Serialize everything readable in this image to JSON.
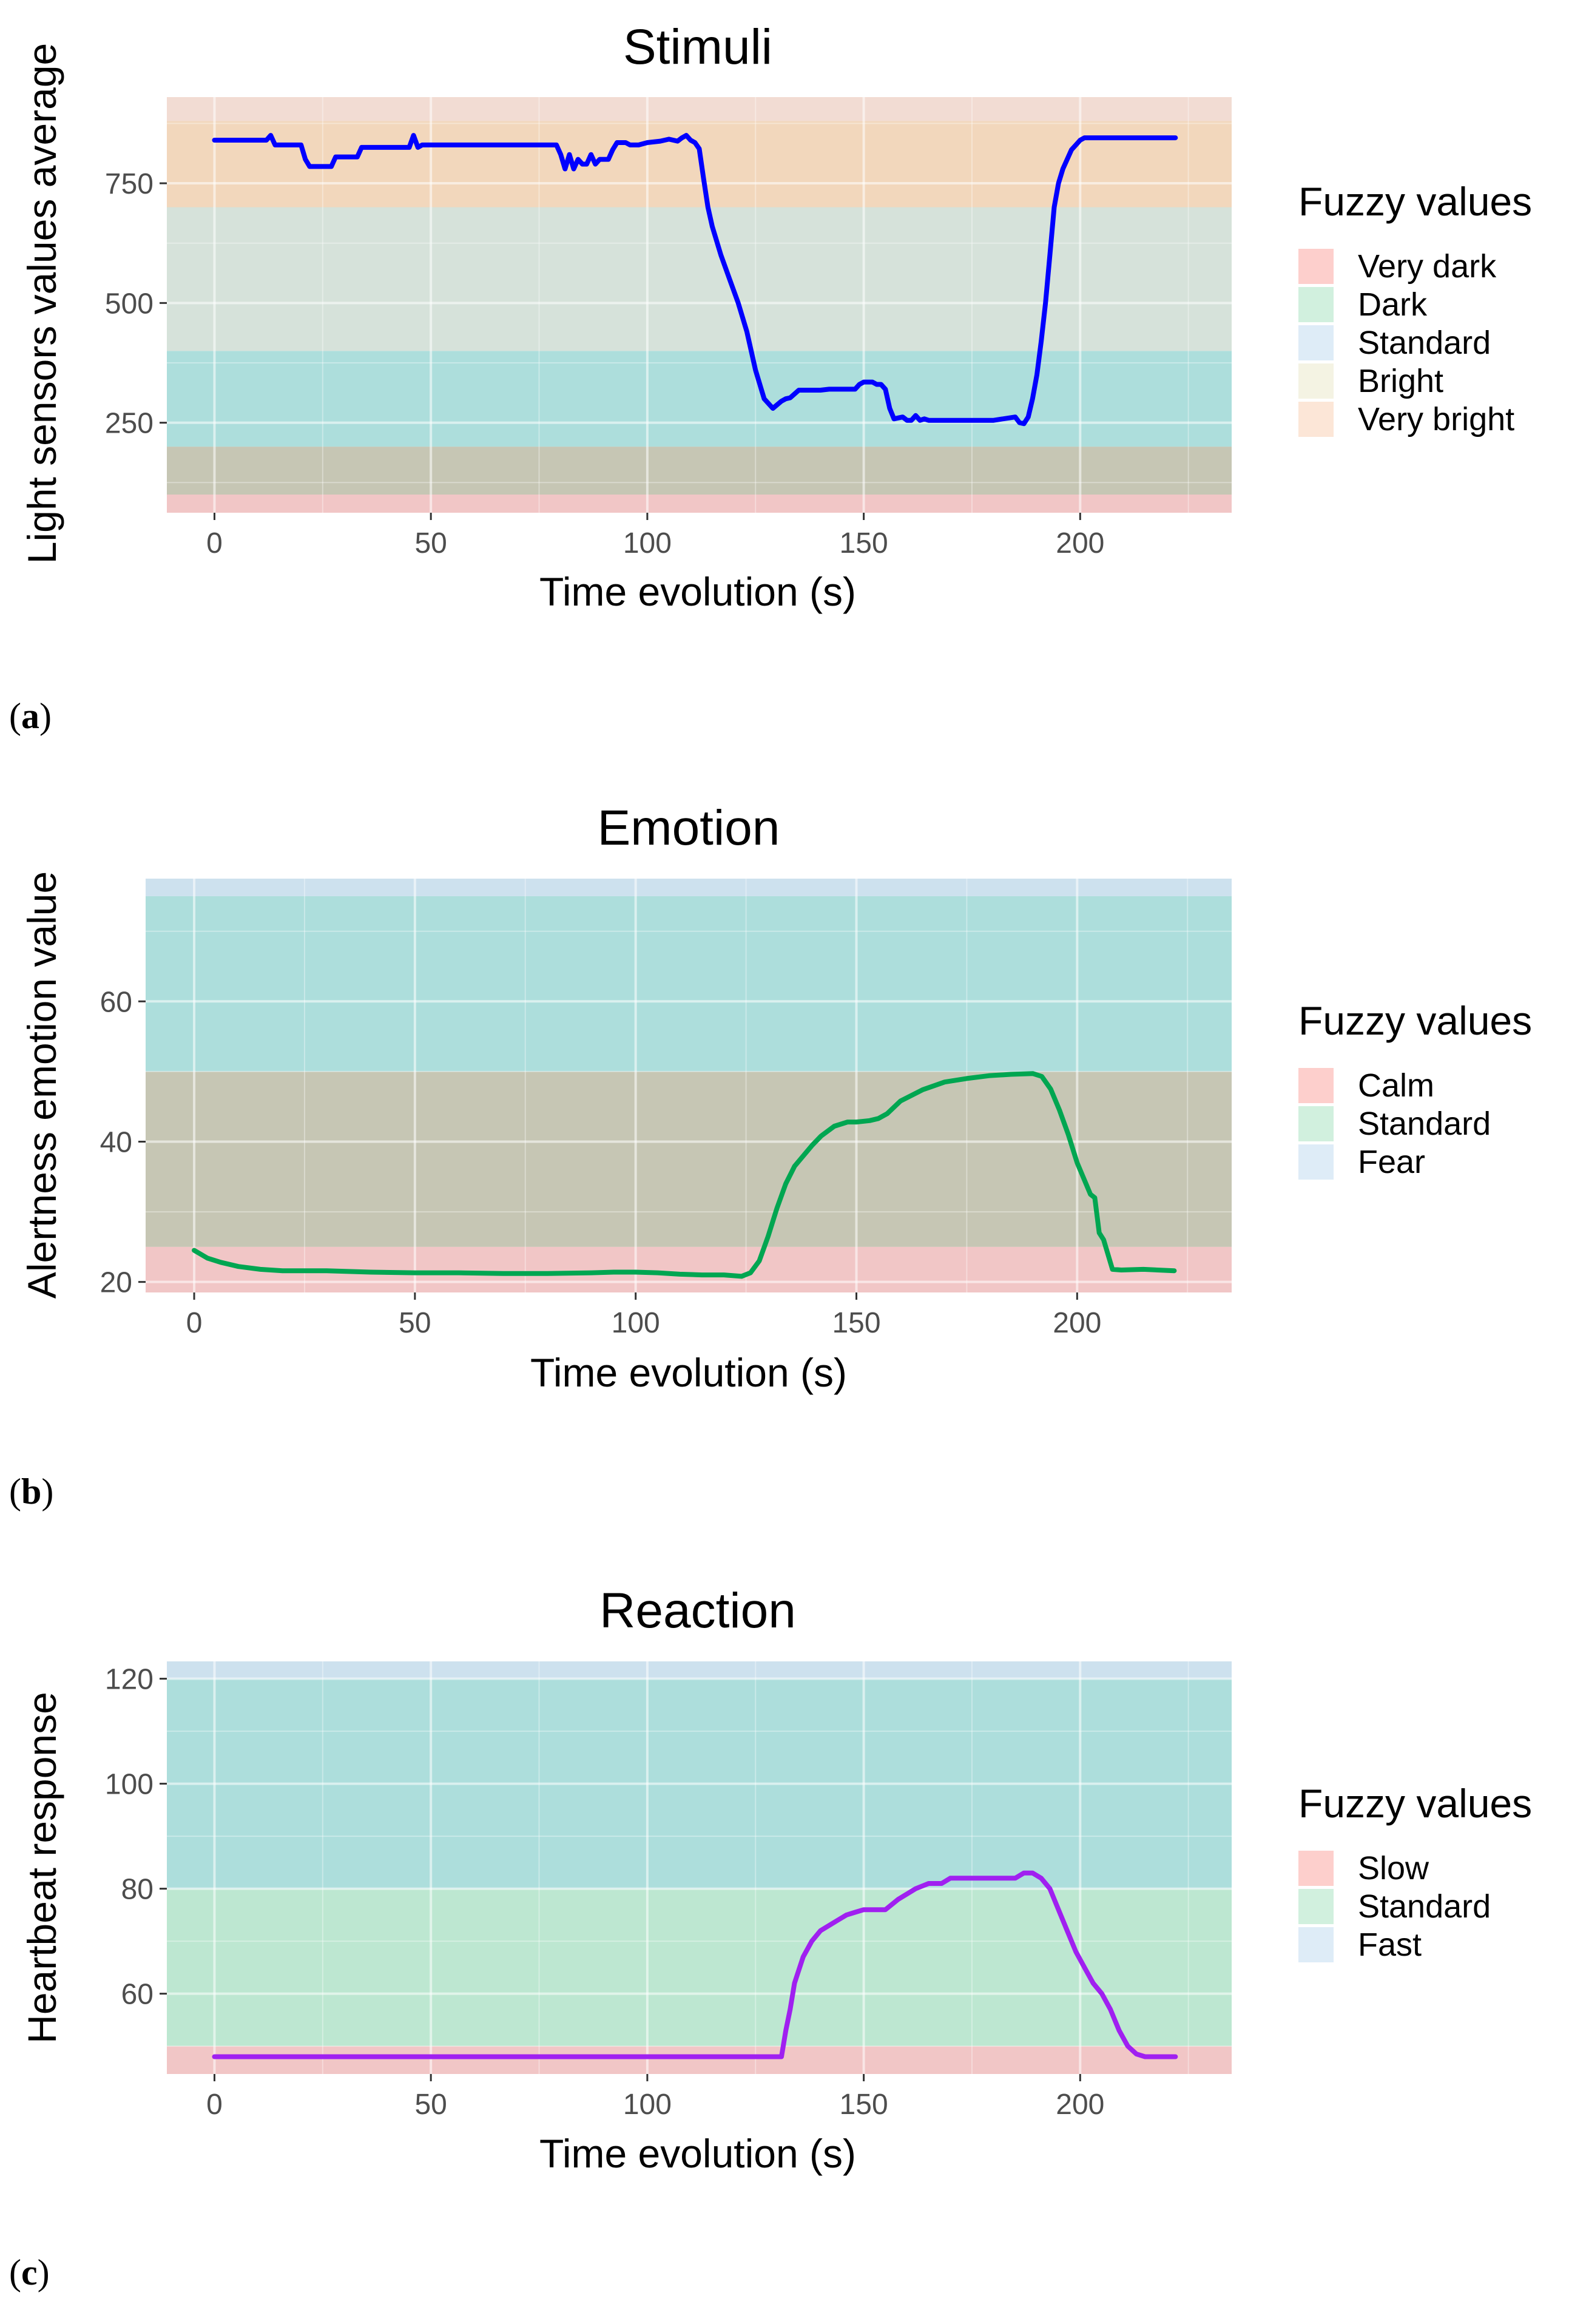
{
  "chart_data": [
    {
      "type": "line",
      "panel_label": "(a)",
      "bold_letter": "a",
      "title": "Stimuli",
      "xlabel": "Time evolution (s)",
      "ylabel": "Light sensors values average",
      "xlim": [
        -11,
        235
      ],
      "ylim": [
        62,
        930
      ],
      "xticks": [
        0,
        50,
        100,
        150,
        200
      ],
      "xtick_labels": [
        "0",
        "50",
        "100",
        "150",
        "200"
      ],
      "yticks": [
        250,
        500,
        750
      ],
      "ytick_labels": [
        "250",
        "500",
        "750"
      ],
      "line_color": "#0000ff",
      "legend": {
        "title": "Fuzzy values",
        "entries": [
          {
            "label": "Very dark",
            "color": "#f8766d"
          },
          {
            "label": "Dark",
            "color": "#7cd5a0"
          },
          {
            "label": "Standard",
            "color": "#a0c8e8"
          },
          {
            "label": "Bright",
            "color": "#e0dcb0"
          },
          {
            "label": "Very bright",
            "color": "#f5b78c"
          }
        ]
      },
      "bands": [
        {
          "from": 62,
          "to": 100,
          "color": "#f1c6c6"
        },
        {
          "from": 100,
          "to": 200,
          "color": "#c6c6b4"
        },
        {
          "from": 200,
          "to": 400,
          "color": "#addedc"
        },
        {
          "from": 400,
          "to": 700,
          "color": "#d6e2da"
        },
        {
          "from": 700,
          "to": 880,
          "color": "#f2d7bc"
        },
        {
          "from": 880,
          "to": 930,
          "color": "#f2dcd3"
        }
      ],
      "series": [
        {
          "name": "Light sensors values average",
          "x": [
            0,
            12,
            13,
            14,
            20,
            21,
            22,
            27,
            28,
            33,
            34,
            45,
            46,
            47,
            48,
            55,
            60,
            70,
            79,
            80,
            81,
            82,
            83,
            84,
            85,
            86,
            87,
            88,
            89,
            90,
            91,
            92,
            93,
            95,
            96,
            98,
            100,
            103,
            104,
            105,
            106,
            107,
            108,
            109,
            110,
            111,
            112,
            113,
            114,
            115,
            117,
            119,
            121,
            123,
            125,
            127,
            129,
            131,
            132,
            133,
            134,
            135,
            136,
            137,
            138,
            140,
            142,
            145,
            148,
            149,
            150,
            152,
            153,
            154,
            155,
            156,
            157,
            158,
            159,
            160,
            161,
            162,
            163,
            164,
            165,
            166,
            170,
            175,
            180,
            185,
            186,
            187,
            188,
            189,
            190,
            191,
            192,
            193,
            194,
            195,
            196,
            197,
            198,
            199,
            200,
            201,
            202,
            204,
            210,
            215,
            222
          ],
          "y": [
            840,
            840,
            850,
            830,
            830,
            800,
            785,
            785,
            805,
            805,
            825,
            825,
            850,
            825,
            830,
            830,
            830,
            830,
            830,
            810,
            780,
            810,
            780,
            800,
            790,
            790,
            810,
            790,
            800,
            800,
            800,
            820,
            835,
            835,
            830,
            830,
            835,
            838,
            840,
            842,
            840,
            838,
            845,
            850,
            840,
            835,
            822,
            760,
            700,
            660,
            600,
            550,
            500,
            440,
            360,
            300,
            280,
            295,
            300,
            302,
            310,
            318,
            318,
            318,
            318,
            318,
            320,
            320,
            320,
            330,
            335,
            335,
            330,
            330,
            320,
            280,
            258,
            260,
            262,
            255,
            255,
            265,
            255,
            258,
            255,
            255,
            255,
            255,
            255,
            262,
            250,
            248,
            262,
            300,
            350,
            420,
            500,
            600,
            700,
            750,
            780,
            800,
            820,
            830,
            840,
            845,
            845,
            845,
            845,
            845,
            845
          ]
        }
      ]
    },
    {
      "type": "line",
      "panel_label": "(b)",
      "bold_letter": "b",
      "title": "Emotion",
      "xlabel": "Time evolution (s)",
      "ylabel": "Alertness emotion value",
      "xlim": [
        -11,
        235
      ],
      "ylim": [
        18.5,
        77.5
      ],
      "xticks": [
        0,
        50,
        100,
        150,
        200
      ],
      "xtick_labels": [
        "0",
        "50",
        "100",
        "150",
        "200"
      ],
      "yticks": [
        20,
        40,
        60
      ],
      "ytick_labels": [
        "20",
        "40",
        "60"
      ],
      "line_color": "#00a651",
      "legend": {
        "title": "Fuzzy values",
        "entries": [
          {
            "label": "Calm",
            "color": "#f8766d"
          },
          {
            "label": "Standard",
            "color": "#7cd5a0"
          },
          {
            "label": "Fear",
            "color": "#a0c8e8"
          }
        ]
      },
      "bands": [
        {
          "from": 18.5,
          "to": 25,
          "color": "#f1c6c6"
        },
        {
          "from": 25,
          "to": 50,
          "color": "#c6c6b4"
        },
        {
          "from": 50,
          "to": 75,
          "color": "#addedc"
        },
        {
          "from": 75,
          "to": 77.5,
          "color": "#cde1ee"
        }
      ],
      "series": [
        {
          "name": "Alertness emotion value",
          "x": [
            0,
            3,
            6,
            10,
            15,
            20,
            30,
            40,
            50,
            60,
            70,
            80,
            90,
            95,
            100,
            105,
            110,
            115,
            120,
            124,
            126,
            128,
            130,
            132,
            134,
            136,
            138,
            140,
            142,
            145,
            148,
            150,
            153,
            155,
            157,
            160,
            165,
            170,
            175,
            180,
            185,
            190,
            192,
            194,
            196,
            198,
            200,
            202,
            203,
            204,
            205,
            206,
            208,
            210,
            215,
            222
          ],
          "y": [
            24.5,
            23.4,
            22.8,
            22.2,
            21.8,
            21.6,
            21.6,
            21.4,
            21.3,
            21.3,
            21.2,
            21.2,
            21.3,
            21.4,
            21.4,
            21.3,
            21.1,
            21.0,
            21.0,
            20.8,
            21.3,
            23.0,
            26.5,
            30.5,
            34.0,
            36.5,
            38.0,
            39.5,
            40.8,
            42.2,
            42.8,
            42.8,
            43.0,
            43.3,
            44.0,
            45.8,
            47.4,
            48.5,
            49.0,
            49.4,
            49.6,
            49.7,
            49.3,
            47.5,
            44.5,
            41.0,
            37.0,
            34.0,
            32.5,
            32.0,
            27.0,
            26.0,
            21.8,
            21.7,
            21.8,
            21.6
          ]
        }
      ]
    },
    {
      "type": "line",
      "panel_label": "(c)",
      "bold_letter": "c",
      "title": "Reaction",
      "xlabel": "Time evolution (s)",
      "ylabel": "Heartbeat response",
      "xlim": [
        -11,
        235
      ],
      "ylim": [
        44.7,
        123.3
      ],
      "xticks": [
        0,
        50,
        100,
        150,
        200
      ],
      "xtick_labels": [
        "0",
        "50",
        "100",
        "150",
        "200"
      ],
      "yticks": [
        60,
        80,
        100,
        120
      ],
      "ytick_labels": [
        "60",
        "80",
        "100",
        "120"
      ],
      "line_color": "#a020f0",
      "legend": {
        "title": "Fuzzy values",
        "entries": [
          {
            "label": "Slow",
            "color": "#f8766d"
          },
          {
            "label": "Standard",
            "color": "#7cd5a0"
          },
          {
            "label": "Fast",
            "color": "#a0c8e8"
          }
        ]
      },
      "bands": [
        {
          "from": 44.7,
          "to": 50,
          "color": "#f1c6c6"
        },
        {
          "from": 50,
          "to": 80,
          "color": "#bde7d1"
        },
        {
          "from": 80,
          "to": 120,
          "color": "#addedc"
        },
        {
          "from": 120,
          "to": 123.3,
          "color": "#cde1ee"
        }
      ],
      "series": [
        {
          "name": "Heartbeat response",
          "x": [
            0,
            50,
            100,
            130,
            131,
            132,
            133,
            134,
            136,
            138,
            140,
            142,
            144,
            146,
            148,
            150,
            152,
            155,
            158,
            160,
            162,
            165,
            168,
            170,
            172,
            175,
            180,
            185,
            187,
            189,
            191,
            193,
            195,
            197,
            199,
            201,
            203,
            205,
            207,
            209,
            211,
            213,
            215,
            222
          ],
          "y": [
            48,
            48,
            48,
            48,
            48,
            53,
            57,
            62,
            67,
            70,
            72,
            73,
            74,
            75,
            75.5,
            76,
            76,
            76,
            78,
            79,
            80,
            81,
            81,
            82,
            82,
            82,
            82,
            82,
            83,
            83,
            82,
            80,
            76,
            72,
            68,
            65,
            62,
            60,
            57,
            53,
            50,
            48.5,
            48,
            48
          ]
        }
      ]
    }
  ]
}
